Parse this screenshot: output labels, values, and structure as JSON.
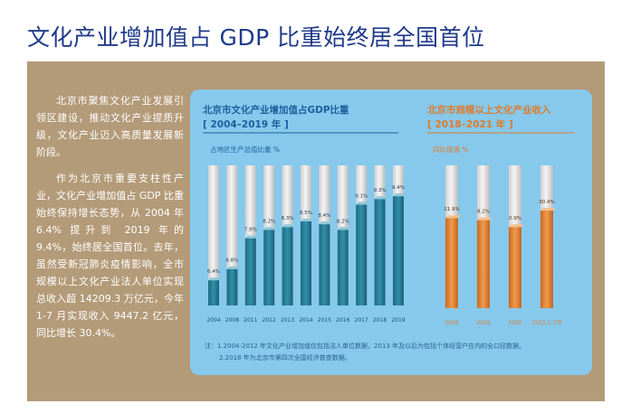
{
  "page_title": "文化产业增加值占 GDP 比重始终居全国首位",
  "body_paragraphs": [
    "北京市聚焦文化产业发展引领区建设，推动文化产业提质升级，文化产业迈入高质量发展新阶段。",
    "作为北京市重要支柱性产业，文化产业增加值占 GDP 比重始终保持增长态势，从 2004 年 6.4% 提升到 2019 年的 9.4%，始终居全国首位。去年，虽然受新冠肺炎疫情影响，全市规模以上文化产业法人单位实现总收入超 14209.3 万亿元，今年 1-7 月实现收入 9447.2 亿元，同比增长 30.4%。"
  ],
  "footnotes": [
    "注：1.2004-2012 年文化产业增加值仅包括法人单位数据，2013 年及以后为包括个体经营户在内的全口径数据。",
    "2.2018 年为北京市第四次全国经济普查数据。"
  ],
  "colors": {
    "panel_bg": "#b39a78",
    "chart_bg": "#86c9ec",
    "left_accent": "#1e5e9e",
    "right_accent": "#e07b2a",
    "left_bar": "#2b7d96",
    "right_bar": "#e48a3a",
    "bar_track": "#e6e6e6"
  },
  "chart_data": [
    {
      "type": "bar",
      "title": "北京市文化产业增加值占GDP比重",
      "subtitle": "[ 2004–2019 年 ]",
      "ylabel": "占地区生产总值比重 %",
      "categories": [
        "2004",
        "2008",
        "2011",
        "2012",
        "2013",
        "2014",
        "2015",
        "2016",
        "2017",
        "2018",
        "2019"
      ],
      "values": [
        6.4,
        6.8,
        7.9,
        8.2,
        8.3,
        8.5,
        8.4,
        8.2,
        9.1,
        9.3,
        9.4
      ],
      "value_labels": [
        "6.4%",
        "6.8%",
        "7.9%",
        "8.2%",
        "8.3%",
        "8.5%",
        "8.4%",
        "8.2%",
        "9.1%",
        "9.3%",
        "9.4%"
      ],
      "ylim": [
        5.5,
        10.5
      ]
    },
    {
      "type": "bar",
      "title": "北京市规模以上文化产业收入",
      "subtitle": "[ 2018–2021 年 ]",
      "ylabel": "同比增速 %",
      "categories": [
        "2018",
        "2019",
        "2020",
        "2021.1-7月"
      ],
      "values": [
        11.9,
        8.2,
        0.9,
        30.4
      ],
      "value_labels": [
        "11.9%",
        "8.2%",
        "0.9%",
        "30.4%"
      ]
    }
  ]
}
